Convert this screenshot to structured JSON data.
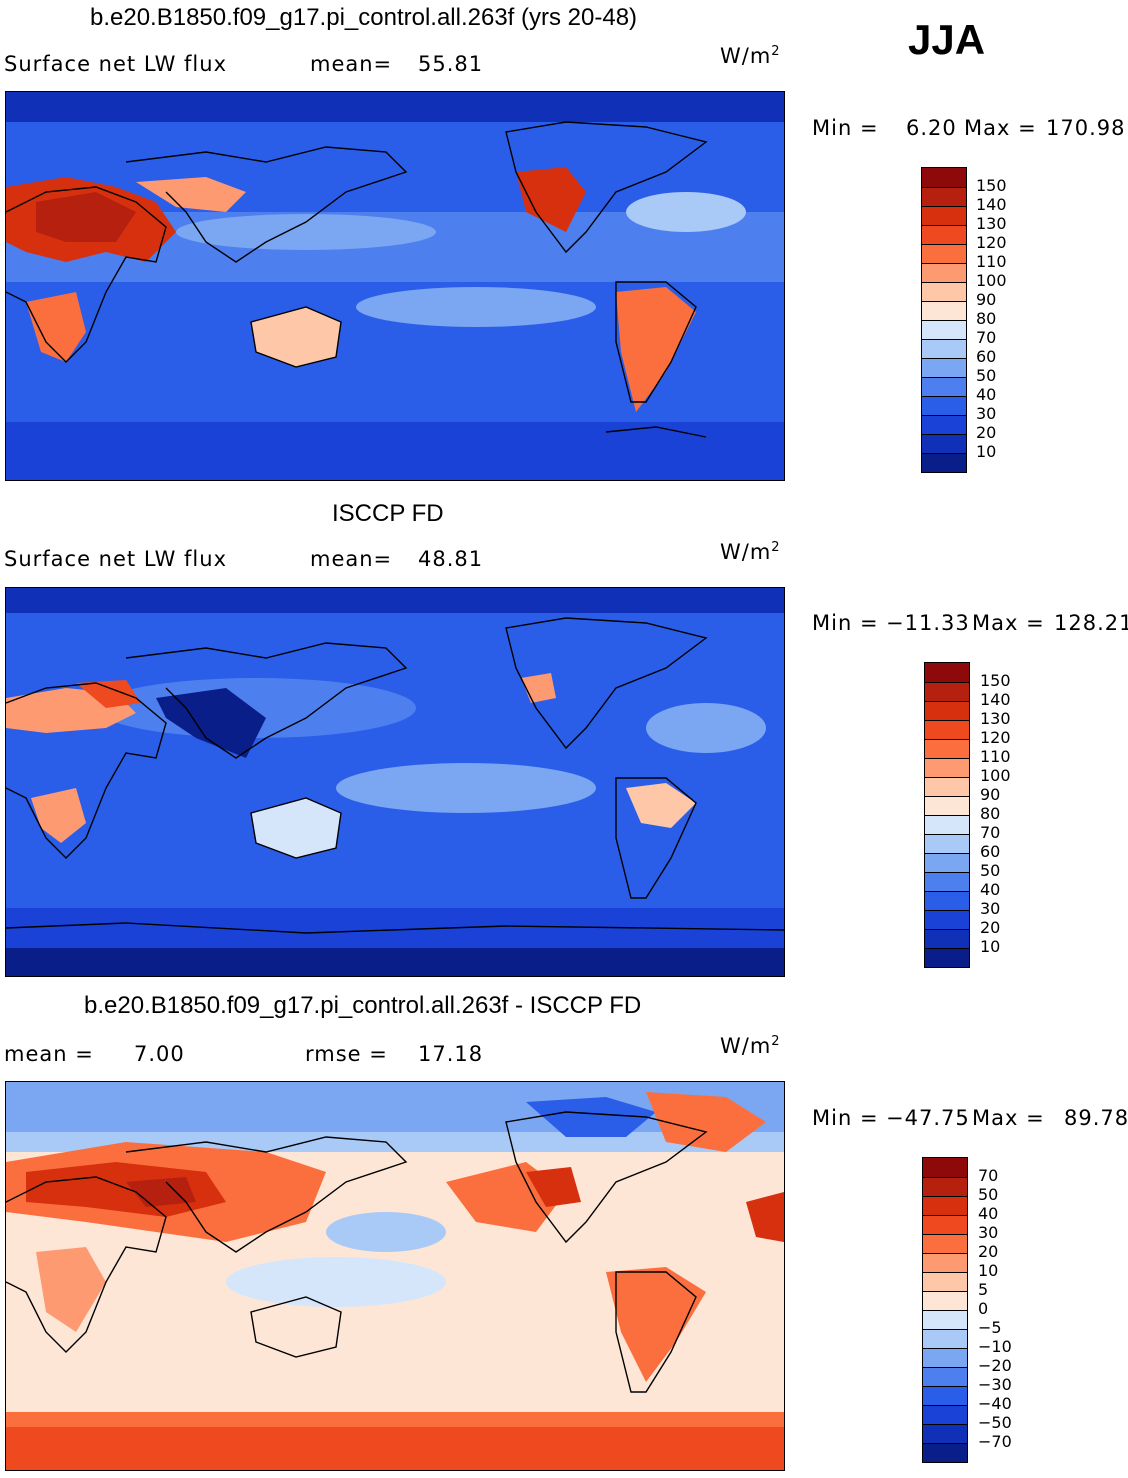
{
  "season": "JJA",
  "panels": [
    {
      "title": "b.e20.B1850.f09_g17.pi_control.all.263f (yrs 20-48)",
      "left_label": "Surface net LW flux",
      "stat_label": "mean=",
      "stat_value": "55.81",
      "units": "W/m",
      "units_sup": "2",
      "min_label": "Min =",
      "min_value": "6.20",
      "max_label": "Max =",
      "max_value": "170.98",
      "legend_levels": [
        "150",
        "140",
        "130",
        "120",
        "110",
        "100",
        "90",
        "80",
        "70",
        "60",
        "50",
        "40",
        "30",
        "20",
        "10"
      ],
      "legend_colors": [
        "#8e0a0a",
        "#b5200f",
        "#d6300f",
        "#ef4a1f",
        "#fb6f3e",
        "#fd9a72",
        "#fdc7a8",
        "#fde6d6",
        "#d6e6fa",
        "#a9c9f6",
        "#7aa6f2",
        "#4d80ee",
        "#2a5ee9",
        "#1a42d6",
        "#1030b8",
        "#0a1e8a"
      ]
    },
    {
      "title": "ISCCP FD",
      "left_label": "Surface net LW flux",
      "stat_label": "mean=",
      "stat_value": "48.81",
      "units": "W/m",
      "units_sup": "2",
      "min_label": "Min =",
      "min_value": "−11.33",
      "max_label": "Max =",
      "max_value": "128.21",
      "legend_levels": [
        "150",
        "140",
        "130",
        "120",
        "110",
        "100",
        "90",
        "80",
        "70",
        "60",
        "50",
        "40",
        "30",
        "20",
        "10"
      ],
      "legend_colors": [
        "#8e0a0a",
        "#b5200f",
        "#d6300f",
        "#ef4a1f",
        "#fb6f3e",
        "#fd9a72",
        "#fdc7a8",
        "#fde6d6",
        "#d6e6fa",
        "#a9c9f6",
        "#7aa6f2",
        "#4d80ee",
        "#2a5ee9",
        "#1a42d6",
        "#1030b8",
        "#0a1e8a"
      ]
    },
    {
      "title": "b.e20.B1850.f09_g17.pi_control.all.263f - ISCCP FD",
      "left_label": "mean =",
      "left_value": "7.00",
      "stat_label": "rmse =",
      "stat_value": "17.18",
      "units": "W/m",
      "units_sup": "2",
      "min_label": "Min =",
      "min_value": "−47.75",
      "max_label": "Max =",
      "max_value": "89.78",
      "legend_levels": [
        "70",
        "50",
        "40",
        "30",
        "20",
        "10",
        "5",
        "0",
        "−5",
        "−10",
        "−20",
        "−30",
        "−40",
        "−50",
        "−70"
      ],
      "legend_colors": [
        "#8e0a0a",
        "#b5200f",
        "#d6300f",
        "#ef4a1f",
        "#fb6f3e",
        "#fd9a72",
        "#fdc7a8",
        "#fde6d6",
        "#d6e6fa",
        "#a9c9f6",
        "#7aa6f2",
        "#4d80ee",
        "#2a5ee9",
        "#1a42d6",
        "#1030b8",
        "#0a1e8a"
      ]
    }
  ]
}
